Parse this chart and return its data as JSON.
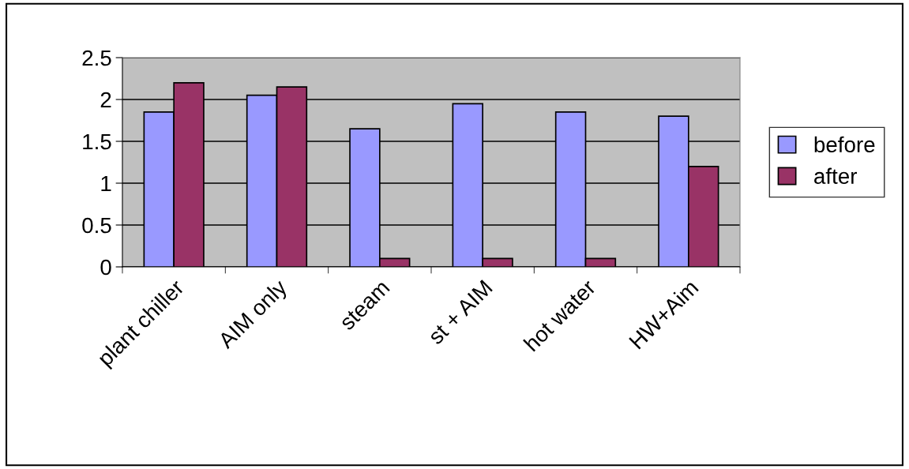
{
  "chart_data": {
    "type": "bar",
    "categories": [
      "plant chiller",
      "AIM only",
      "steam",
      "st + AIM",
      "hot water",
      "HW+Aim"
    ],
    "series": [
      {
        "name": "before",
        "color": "#9999ff",
        "values": [
          1.85,
          2.05,
          1.65,
          1.95,
          1.85,
          1.8
        ]
      },
      {
        "name": "after",
        "color": "#993366",
        "values": [
          2.2,
          2.15,
          0.1,
          0.1,
          0.1,
          1.2
        ]
      }
    ],
    "ylim": [
      0,
      2.5
    ],
    "yticks": [
      0,
      0.5,
      1,
      1.5,
      2,
      2.5
    ],
    "grid": "y",
    "legend": "right"
  }
}
